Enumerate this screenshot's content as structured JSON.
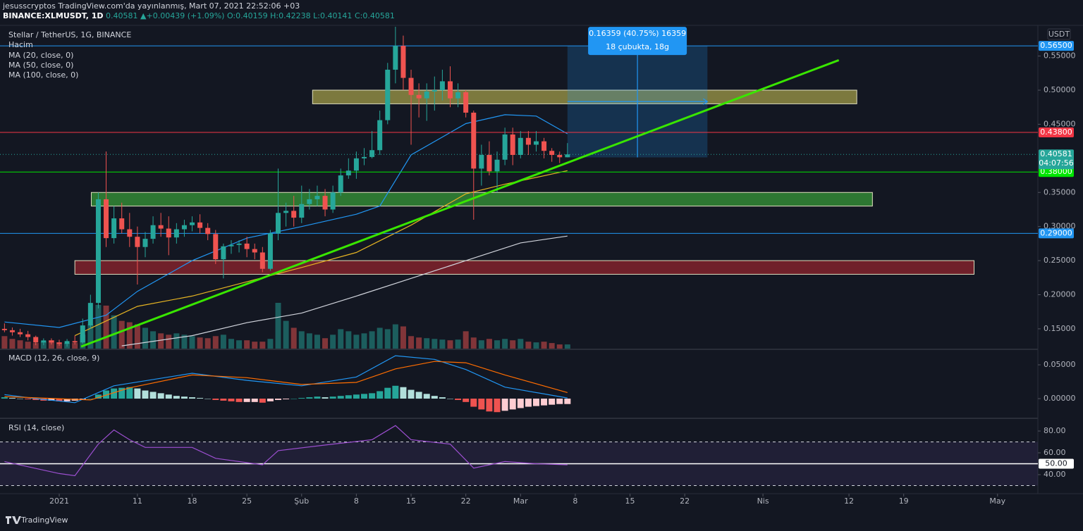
{
  "header": {
    "author_line": "jesusscryptos TradingView.com'da yayınlanmış, Mart 07, 2021 22:52:06 +03",
    "symbol": "BINANCE:XLMUSDT, 1D",
    "price": "0.40581",
    "arrow": "▲",
    "change": "+0.00439 (+1.09%)",
    "o": "O:0.40159",
    "h": "H:0.42238",
    "l": "L:0.40141",
    "c": "C:0.40581"
  },
  "footer": {
    "logo": "TradingView"
  },
  "chart_data": [
    {
      "type": "candlestick",
      "title": "Stellar / TetherUS, 1G, BINANCE",
      "volume_name": "Hacim",
      "currency": "USDT",
      "xlim": [
        -7.574,
        125.16
      ],
      "ylim": [
        0.121,
        0.594
      ],
      "xticks": [
        {
          "value": 0,
          "label": "2021"
        },
        {
          "value": 10,
          "label": "11"
        },
        {
          "value": 17,
          "label": "18"
        },
        {
          "value": 24,
          "label": "25"
        },
        {
          "value": 31,
          "label": "Şub"
        },
        {
          "value": 38,
          "label": "8"
        },
        {
          "value": 45,
          "label": "15"
        },
        {
          "value": 52,
          "label": "22"
        },
        {
          "value": 59,
          "label": "Mar"
        },
        {
          "value": 66,
          "label": "8"
        },
        {
          "value": 73,
          "label": "15"
        },
        {
          "value": 80,
          "label": "22"
        },
        {
          "value": 90,
          "label": "Nis"
        },
        {
          "value": 101,
          "label": "12"
        },
        {
          "value": 108,
          "label": "19"
        },
        {
          "value": 120,
          "label": "May"
        }
      ],
      "yticks": [
        {
          "value": 0.15,
          "label": "0.15000"
        },
        {
          "value": 0.2,
          "label": "0.20000"
        },
        {
          "value": 0.25,
          "label": "0.25000"
        },
        {
          "value": 0.3,
          "label": "0.30000"
        },
        {
          "value": 0.35,
          "label": "0.35000"
        },
        {
          "value": 0.45,
          "label": "0.45000"
        },
        {
          "value": 0.5,
          "label": "0.50000"
        },
        {
          "value": 0.55,
          "label": "0.55000"
        }
      ],
      "up_color": "#26a69a",
      "down_color": "#ef5350",
      "x": [
        -7,
        -6,
        -5,
        -4,
        -3,
        -2,
        -1,
        0,
        1,
        2,
        3,
        4,
        5,
        6,
        7,
        8,
        9,
        10,
        11,
        12,
        13,
        14,
        15,
        16,
        17,
        18,
        19,
        20,
        21,
        22,
        23,
        24,
        25,
        26,
        27,
        28,
        29,
        30,
        31,
        32,
        33,
        34,
        35,
        36,
        37,
        38,
        39,
        40,
        41,
        42,
        43,
        44,
        45,
        46,
        47,
        48,
        49,
        50,
        51,
        52,
        53,
        54,
        55,
        56,
        57,
        58,
        59,
        60,
        61,
        62,
        63,
        64,
        65
      ],
      "open": [
        0.15,
        0.148,
        0.145,
        0.142,
        0.138,
        0.13,
        0.133,
        0.13,
        0.128,
        0.132,
        0.13,
        0.155,
        0.188,
        0.34,
        0.283,
        0.312,
        0.296,
        0.285,
        0.27,
        0.282,
        0.302,
        0.297,
        0.284,
        0.296,
        0.302,
        0.306,
        0.298,
        0.289,
        0.252,
        0.271,
        0.273,
        0.275,
        0.267,
        0.262,
        0.238,
        0.29,
        0.32,
        0.323,
        0.313,
        0.333,
        0.34,
        0.345,
        0.325,
        0.35,
        0.375,
        0.382,
        0.4,
        0.402,
        0.412,
        0.456,
        0.53,
        0.565,
        0.518,
        0.493,
        0.488,
        0.498,
        0.5,
        0.513,
        0.488,
        0.497,
        0.467,
        0.385,
        0.405,
        0.381,
        0.398,
        0.435,
        0.405,
        0.43,
        0.42,
        0.425,
        0.411,
        0.405,
        0.40159
      ],
      "high": [
        0.158,
        0.152,
        0.15,
        0.147,
        0.14,
        0.136,
        0.136,
        0.134,
        0.135,
        0.14,
        0.165,
        0.2,
        0.35,
        0.41,
        0.33,
        0.335,
        0.32,
        0.3,
        0.292,
        0.315,
        0.32,
        0.315,
        0.305,
        0.31,
        0.315,
        0.318,
        0.305,
        0.295,
        0.275,
        0.28,
        0.28,
        0.285,
        0.275,
        0.27,
        0.295,
        0.385,
        0.335,
        0.345,
        0.36,
        0.355,
        0.36,
        0.355,
        0.36,
        0.385,
        0.4,
        0.41,
        0.415,
        0.44,
        0.47,
        0.54,
        0.593,
        0.58,
        0.53,
        0.51,
        0.51,
        0.52,
        0.53,
        0.535,
        0.51,
        0.5,
        0.47,
        0.42,
        0.425,
        0.41,
        0.445,
        0.445,
        0.44,
        0.44,
        0.44,
        0.43,
        0.415,
        0.41,
        0.42238
      ],
      "low": [
        0.145,
        0.14,
        0.138,
        0.133,
        0.126,
        0.126,
        0.127,
        0.125,
        0.124,
        0.127,
        0.128,
        0.15,
        0.18,
        0.27,
        0.275,
        0.29,
        0.27,
        0.215,
        0.255,
        0.275,
        0.285,
        0.258,
        0.275,
        0.285,
        0.293,
        0.29,
        0.28,
        0.245,
        0.224,
        0.26,
        0.262,
        0.255,
        0.252,
        0.233,
        0.235,
        0.28,
        0.3,
        0.3,
        0.305,
        0.325,
        0.33,
        0.315,
        0.32,
        0.345,
        0.37,
        0.37,
        0.39,
        0.4,
        0.405,
        0.45,
        0.51,
        0.5,
        0.42,
        0.46,
        0.455,
        0.47,
        0.485,
        0.475,
        0.475,
        0.46,
        0.31,
        0.36,
        0.375,
        0.35,
        0.39,
        0.39,
        0.4,
        0.405,
        0.41,
        0.4,
        0.395,
        0.393,
        0.40141
      ],
      "close": [
        0.148,
        0.145,
        0.142,
        0.138,
        0.13,
        0.133,
        0.13,
        0.128,
        0.132,
        0.13,
        0.155,
        0.188,
        0.34,
        0.283,
        0.312,
        0.296,
        0.285,
        0.27,
        0.282,
        0.302,
        0.297,
        0.284,
        0.296,
        0.302,
        0.306,
        0.298,
        0.289,
        0.252,
        0.271,
        0.273,
        0.275,
        0.267,
        0.262,
        0.238,
        0.29,
        0.32,
        0.323,
        0.313,
        0.333,
        0.34,
        0.345,
        0.325,
        0.35,
        0.375,
        0.382,
        0.4,
        0.402,
        0.412,
        0.456,
        0.53,
        0.565,
        0.518,
        0.493,
        0.488,
        0.498,
        0.5,
        0.513,
        0.488,
        0.497,
        0.467,
        0.385,
        0.405,
        0.381,
        0.398,
        0.435,
        0.405,
        0.43,
        0.42,
        0.425,
        0.411,
        0.405,
        0.40159,
        0.40581
      ],
      "volume": [
        18,
        14,
        12,
        10,
        8,
        10,
        12,
        9,
        8,
        8,
        20,
        35,
        63,
        62,
        48,
        40,
        38,
        35,
        30,
        25,
        22,
        20,
        22,
        20,
        18,
        16,
        15,
        18,
        20,
        14,
        12,
        12,
        10,
        10,
        14,
        66,
        40,
        30,
        25,
        22,
        20,
        15,
        20,
        28,
        25,
        20,
        22,
        25,
        30,
        28,
        35,
        32,
        18,
        16,
        15,
        14,
        13,
        12,
        13,
        25,
        16,
        12,
        14,
        12,
        14,
        12,
        14,
        10,
        9,
        10,
        8,
        6,
        6
      ],
      "series": [
        {
          "name": "MA (20, close, 0)",
          "color": "#2196f3",
          "x": [
            -7,
            0,
            6,
            10,
            17,
            24,
            31,
            38,
            41,
            45,
            52,
            57,
            61,
            65
          ],
          "values": [
            0.16,
            0.152,
            0.17,
            0.205,
            0.25,
            0.283,
            0.3,
            0.318,
            0.33,
            0.405,
            0.451,
            0.464,
            0.462,
            0.436
          ]
        },
        {
          "name": "MA (50, close, 0)",
          "color": "#e6b422",
          "x": [
            2,
            10,
            17,
            24,
            31,
            38,
            45,
            52,
            57,
            65
          ],
          "values": [
            0.14,
            0.183,
            0.198,
            0.219,
            0.24,
            0.262,
            0.302,
            0.348,
            0.362,
            0.382
          ]
        },
        {
          "name": "MA (100, close, 0)",
          "color": "#d1d4dc",
          "x": [
            8,
            17,
            24,
            31,
            38,
            45,
            52,
            59,
            65
          ],
          "values": [
            0.125,
            0.14,
            0.159,
            0.173,
            0.198,
            0.224,
            0.25,
            0.276,
            0.286
          ]
        }
      ],
      "hlines": [
        {
          "value": 0.565,
          "label": "0.56500",
          "color": "#2196f3"
        },
        {
          "value": 0.438,
          "label": "0.43800",
          "color": "#f23645"
        },
        {
          "value": 0.38,
          "label": "0.38000",
          "color": "#00e600"
        },
        {
          "value": 0.29,
          "label": "0.29000",
          "color": "#2196f3"
        }
      ],
      "last": {
        "value": 0.40581,
        "label": "0.40581",
        "countdown": "04:07:56",
        "color": "#26a69a"
      },
      "zones": [
        {
          "x": [
            32.4,
            102
          ],
          "y": [
            0.48,
            0.5
          ],
          "color": "rgba(230,220,90,0.5)"
        },
        {
          "x": [
            4.1,
            104
          ],
          "y": [
            0.33,
            0.35
          ],
          "color": "rgba(60,170,60,0.65)"
        },
        {
          "x": [
            2,
            117
          ],
          "y": [
            0.23,
            0.25
          ],
          "color": "rgba(190,40,50,0.55)"
        }
      ],
      "trendline": {
        "x": [
          2.8,
          99.7
        ],
        "y": [
          0.124,
          0.544
        ],
        "color": "#39e600"
      },
      "measure": {
        "x": [
          65,
          82.9
        ],
        "y": [
          0.40141,
          0.565
        ],
        "color": "#2196f3",
        "label": [
          "0.16359 (40.75%) 16359",
          "18 çubukta, 18g"
        ]
      }
    },
    {
      "type": "macd",
      "title": "MACD (12, 26, close, 9)",
      "ylim": [
        -0.0281,
        0.0719
      ],
      "yticks": [
        {
          "value": 0.05,
          "label": "0.05000"
        },
        {
          "value": 0,
          "label": "0.00000"
        }
      ],
      "hist_colors": [
        "#26a69a",
        "#b2dfdb",
        "#ffcdd2",
        "#ef5350"
      ],
      "histogram": [
        0.002,
        0.001,
        0,
        -0.001,
        -0.002,
        -0.003,
        -0.003,
        -0.004,
        -0.004,
        -0.003,
        -0.002,
        0,
        0.006,
        0.012,
        0.015,
        0.016,
        0.017,
        0.015,
        0.012,
        0.01,
        0.008,
        0.006,
        0.004,
        0.003,
        0.002,
        0.001,
        0,
        -0.002,
        -0.003,
        -0.004,
        -0.005,
        -0.005,
        -0.005,
        -0.006,
        -0.004,
        -0.002,
        -0.001,
        0,
        0.001,
        0.002,
        0.003,
        0.002,
        0.003,
        0.004,
        0.005,
        0.006,
        0.007,
        0.008,
        0.011,
        0.016,
        0.019,
        0.017,
        0.013,
        0.01,
        0.007,
        0.004,
        0.002,
        0,
        -0.002,
        -0.005,
        -0.012,
        -0.016,
        -0.019,
        -0.02,
        -0.018,
        -0.016,
        -0.014,
        -0.012,
        -0.011,
        -0.01,
        -0.009,
        -0.008,
        -0.008
      ],
      "series": [
        {
          "color": "#2196f3",
          "x": [
            -7,
            -3,
            2,
            7,
            17,
            24,
            31,
            38,
            43,
            48,
            52,
            57,
            65
          ],
          "values": [
            0.006,
            0,
            -0.006,
            0.019,
            0.0375,
            0.027,
            0.019,
            0.032,
            0.0635,
            0.058,
            0.043,
            0.017,
            0.001
          ]
        },
        {
          "color": "#ff6d00",
          "x": [
            -7,
            4,
            9,
            17,
            24,
            31,
            38,
            43,
            48,
            52,
            57,
            65
          ],
          "values": [
            0.003,
            -0.002,
            0.016,
            0.035,
            0.031,
            0.021,
            0.024,
            0.044,
            0.055,
            0.053,
            0.035,
            0.009
          ]
        }
      ]
    },
    {
      "type": "rsi",
      "title": "RSI (14, close)",
      "ylim": [
        23.2,
        91
      ],
      "yticks": [
        {
          "value": 80,
          "label": "80.00"
        },
        {
          "value": 60,
          "label": "60.00"
        },
        {
          "value": 40,
          "label": "40.00"
        }
      ],
      "bands": [
        30,
        70
      ],
      "band_color": "rgba(126,87,194,0.13)",
      "midline": {
        "value": 50,
        "label": "50.00"
      },
      "series": [
        {
          "color": "#9c4fd0",
          "x": [
            -7,
            0,
            2,
            5,
            7,
            9,
            11,
            17,
            20,
            26,
            28,
            35,
            40,
            43,
            45,
            50,
            53,
            57,
            61,
            65
          ],
          "values": [
            52,
            41,
            39,
            68,
            81,
            72,
            65,
            65,
            55,
            49,
            62,
            68,
            72,
            85,
            72,
            68,
            46,
            52,
            50,
            49
          ]
        }
      ]
    }
  ]
}
